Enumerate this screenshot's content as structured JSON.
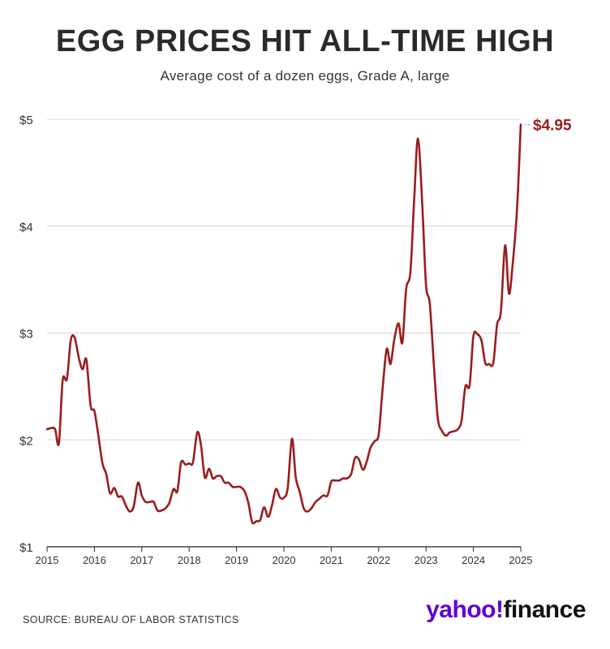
{
  "header": {
    "title": "EGG PRICES HIT ALL-TIME HIGH",
    "subtitle": "Average cost of a dozen eggs, Grade A, large"
  },
  "footer": {
    "source": "SOURCE: BUREAU OF LABOR STATISTICS",
    "brand_part1": "yahoo!",
    "brand_part2": "finance"
  },
  "colors": {
    "line": "#9b1c1c",
    "grid": "#d6d6d6",
    "brand": "#6001d2"
  },
  "chart_data": {
    "type": "line",
    "title": "EGG PRICES HIT ALL-TIME HIGH",
    "subtitle": "Average cost of a dozen eggs, Grade A, large",
    "xlabel": "",
    "ylabel": "",
    "xlim": [
      2015,
      2025
    ],
    "ylim": [
      1,
      5
    ],
    "x_ticks": [
      2015,
      2016,
      2017,
      2018,
      2019,
      2020,
      2021,
      2022,
      2023,
      2024,
      2025
    ],
    "x_tick_labels": [
      "2015",
      "2016",
      "2017",
      "2018",
      "2019",
      "2020",
      "2021",
      "2022",
      "2023",
      "2024",
      "2025"
    ],
    "y_ticks": [
      1,
      2,
      3,
      4,
      5
    ],
    "y_tick_labels": [
      "$1",
      "$2",
      "$3",
      "$4",
      "$5"
    ],
    "grid": "horizontal",
    "end_label": "$4.95",
    "series": [
      {
        "x": [
          2015.0,
          2015.08,
          2015.17,
          2015.25,
          2015.33,
          2015.42,
          2015.5,
          2015.58,
          2015.67,
          2015.75,
          2015.83,
          2015.92,
          2016.0,
          2016.08,
          2016.17,
          2016.25,
          2016.33,
          2016.42,
          2016.5,
          2016.58,
          2016.67,
          2016.75,
          2016.83,
          2016.92,
          2017.0,
          2017.08,
          2017.17,
          2017.25,
          2017.33,
          2017.42,
          2017.5,
          2017.58,
          2017.67,
          2017.75,
          2017.83,
          2017.92,
          2018.0,
          2018.08,
          2018.17,
          2018.25,
          2018.33,
          2018.42,
          2018.5,
          2018.58,
          2018.67,
          2018.75,
          2018.83,
          2018.92,
          2019.0,
          2019.08,
          2019.17,
          2019.25,
          2019.33,
          2019.42,
          2019.5,
          2019.58,
          2019.67,
          2019.75,
          2019.83,
          2019.92,
          2020.0,
          2020.08,
          2020.17,
          2020.25,
          2020.33,
          2020.42,
          2020.5,
          2020.58,
          2020.67,
          2020.75,
          2020.83,
          2020.92,
          2021.0,
          2021.08,
          2021.17,
          2021.25,
          2021.33,
          2021.42,
          2021.5,
          2021.58,
          2021.67,
          2021.75,
          2021.83,
          2021.92,
          2022.0,
          2022.08,
          2022.17,
          2022.25,
          2022.33,
          2022.42,
          2022.5,
          2022.58,
          2022.67,
          2022.75,
          2022.83,
          2022.92,
          2023.0,
          2023.08,
          2023.17,
          2023.25,
          2023.33,
          2023.42,
          2023.5,
          2023.58,
          2023.67,
          2023.75,
          2023.83,
          2023.92,
          2024.0,
          2024.08,
          2024.17,
          2024.25,
          2024.33,
          2024.42,
          2024.5,
          2024.58,
          2024.67,
          2024.75,
          2024.83,
          2024.92,
          2025.0
        ],
        "y": [
          2.1,
          2.11,
          2.1,
          1.97,
          2.56,
          2.57,
          2.93,
          2.96,
          2.77,
          2.66,
          2.75,
          2.32,
          2.27,
          2.05,
          1.78,
          1.68,
          1.5,
          1.55,
          1.47,
          1.47,
          1.38,
          1.33,
          1.38,
          1.6,
          1.48,
          1.42,
          1.42,
          1.42,
          1.34,
          1.34,
          1.36,
          1.41,
          1.54,
          1.52,
          1.79,
          1.77,
          1.78,
          1.79,
          2.07,
          1.95,
          1.65,
          1.73,
          1.64,
          1.66,
          1.66,
          1.6,
          1.6,
          1.56,
          1.56,
          1.56,
          1.52,
          1.41,
          1.23,
          1.24,
          1.25,
          1.37,
          1.28,
          1.39,
          1.54,
          1.46,
          1.46,
          1.55,
          2.01,
          1.65,
          1.52,
          1.36,
          1.33,
          1.36,
          1.42,
          1.45,
          1.48,
          1.48,
          1.61,
          1.62,
          1.62,
          1.64,
          1.64,
          1.68,
          1.83,
          1.82,
          1.72,
          1.8,
          1.93,
          1.99,
          2.05,
          2.46,
          2.85,
          2.71,
          2.94,
          3.09,
          2.91,
          3.41,
          3.57,
          4.25,
          4.82,
          4.21,
          3.45,
          3.27,
          2.67,
          2.2,
          2.09,
          2.04,
          2.07,
          2.08,
          2.1,
          2.18,
          2.5,
          2.51,
          2.97,
          2.99,
          2.93,
          2.72,
          2.71,
          2.72,
          3.08,
          3.2,
          3.82,
          3.37,
          3.65,
          4.15,
          4.95
        ]
      }
    ]
  }
}
